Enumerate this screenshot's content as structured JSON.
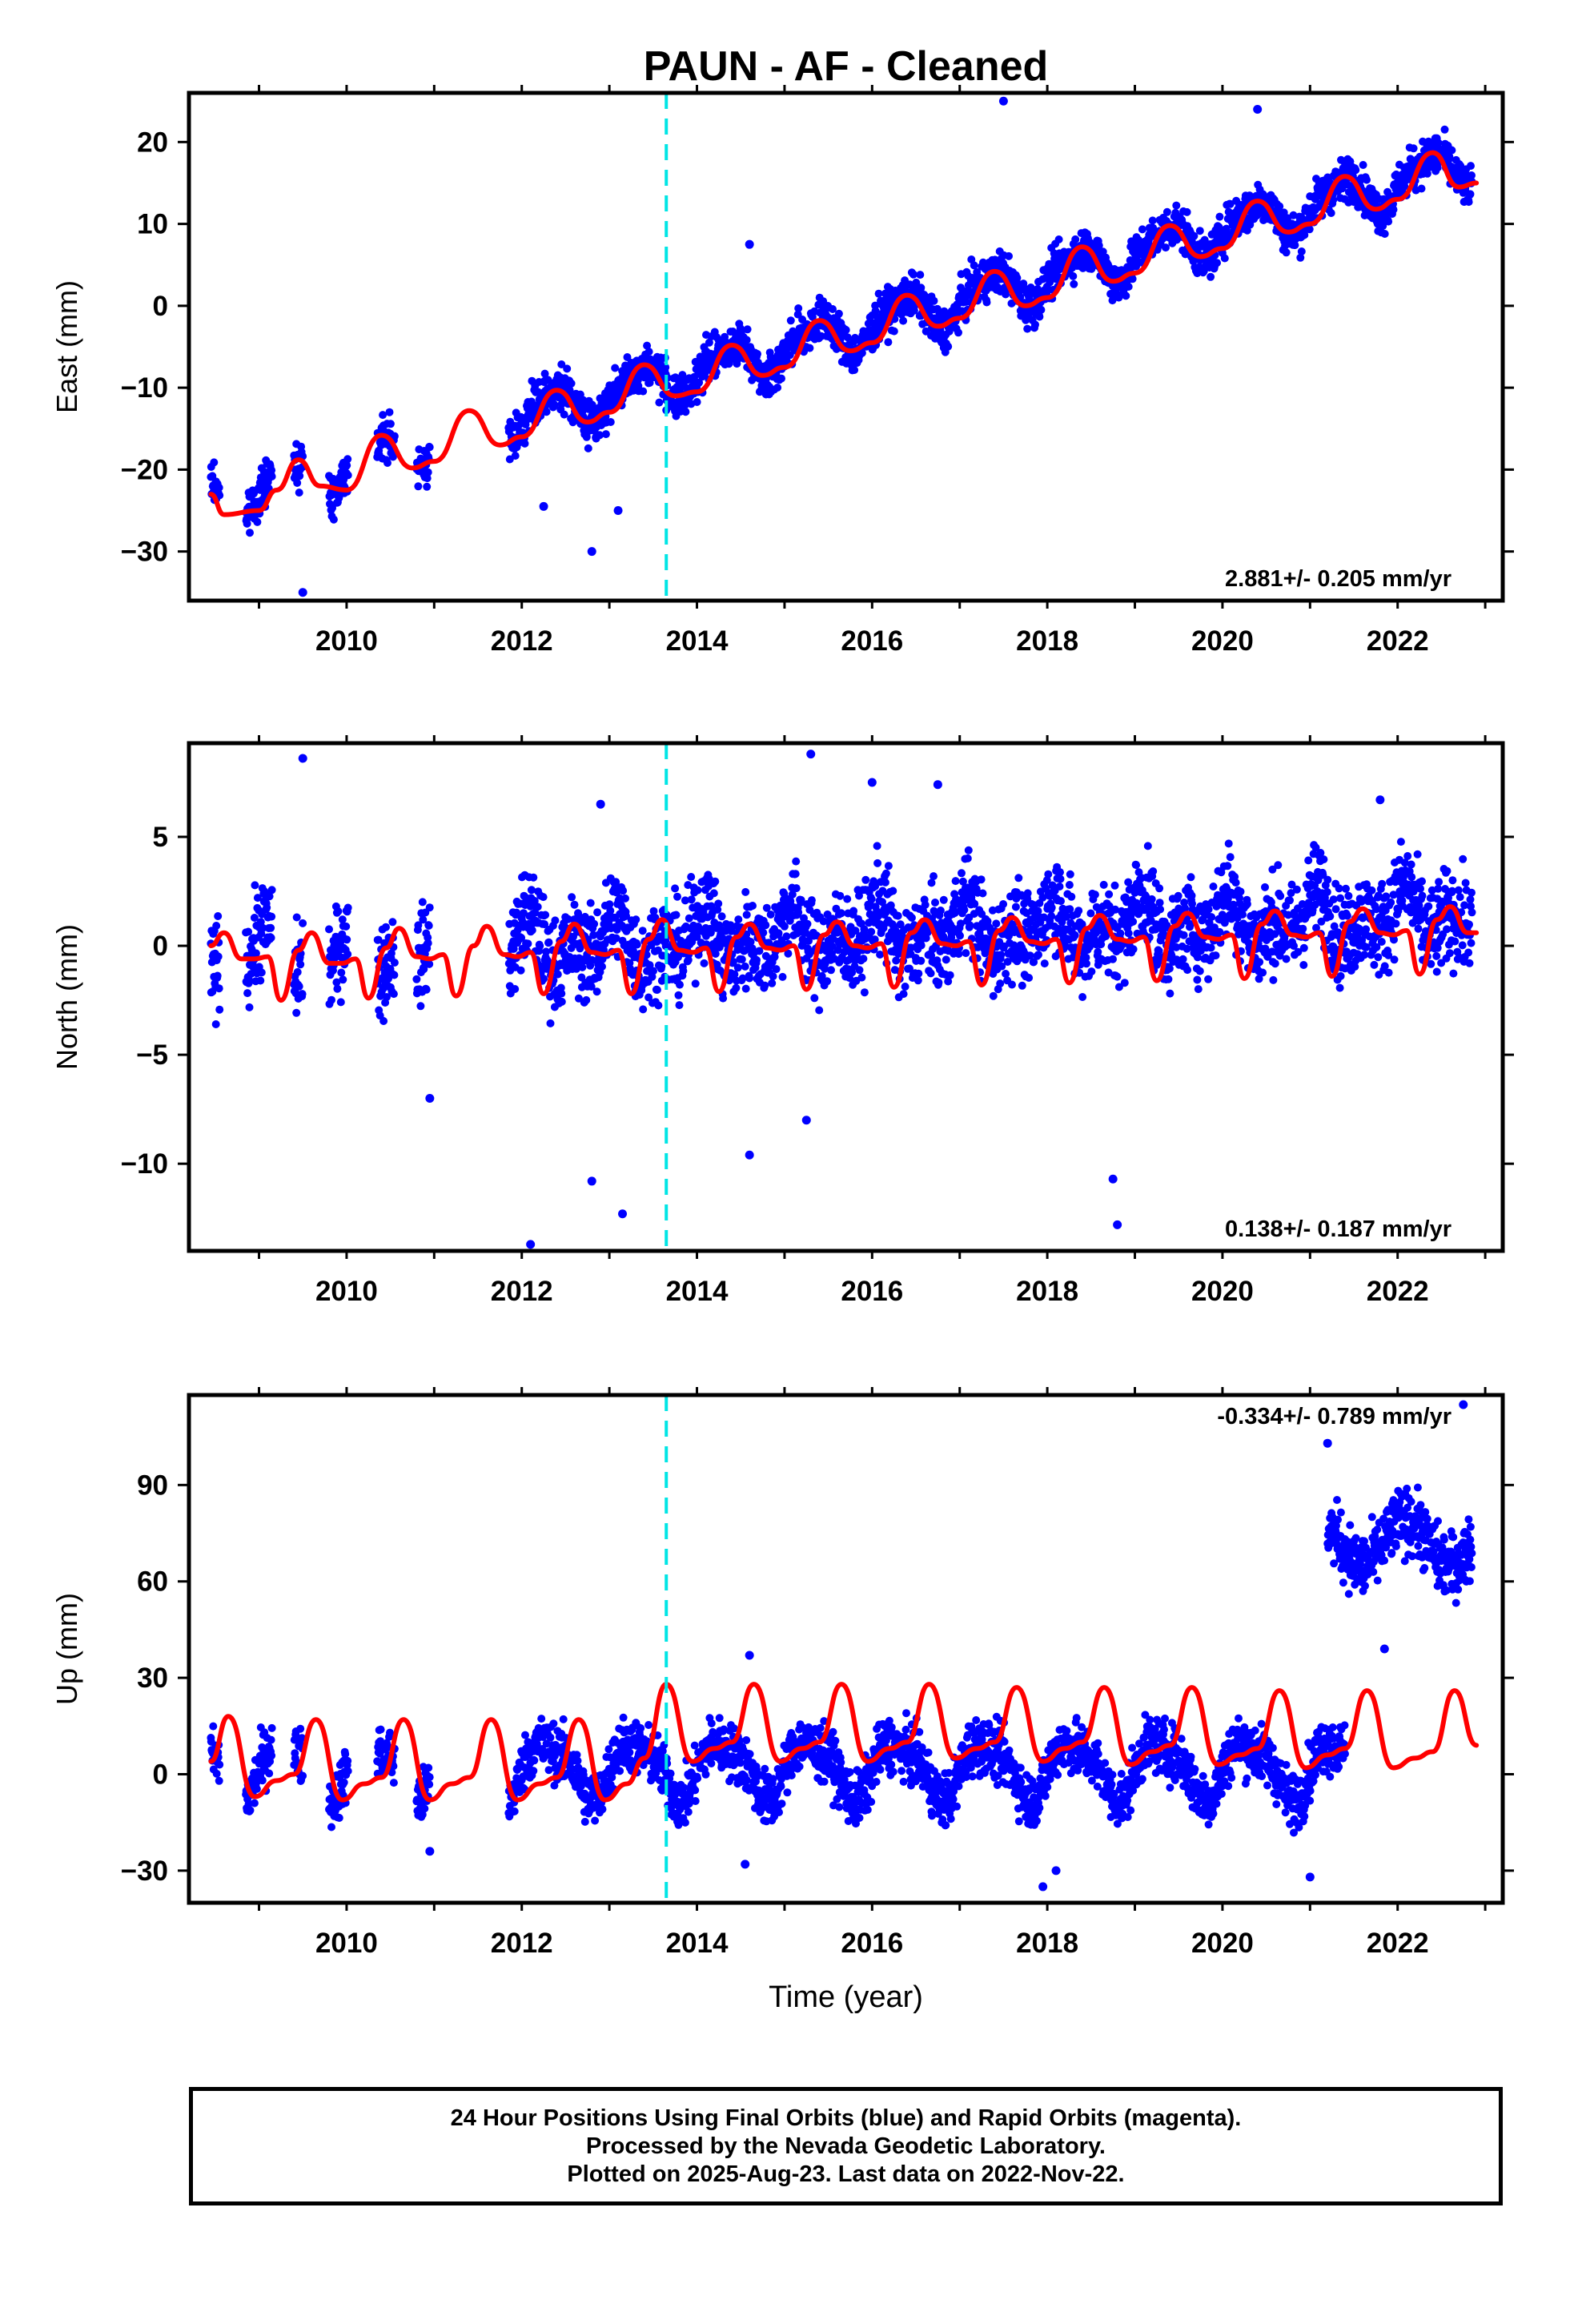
{
  "chart_data": [
    {
      "type": "scatter",
      "title": "PAUN  - AF - Cleaned",
      "ylabel": "East (mm)",
      "xlabel": "",
      "xlim": [
        2008.2,
        2023.2
      ],
      "ylim": [
        -36,
        26
      ],
      "xticks": [
        2010,
        2012,
        2014,
        2016,
        2018,
        2020,
        2022
      ],
      "yticks": [
        -30,
        -20,
        -10,
        0,
        10,
        20
      ],
      "rate_label": "2.881+/- 0.205 mm/yr",
      "rate_position": "bottom-right",
      "break_year": 2013.65,
      "grid": false,
      "series": [
        {
          "role": "final-orbit-positions",
          "color": "#0000ff",
          "segments": [
            [
              2008.45,
              2008.55
            ],
            [
              2008.85,
              2009.15
            ],
            [
              2009.4,
              2009.5
            ],
            [
              2009.8,
              2010.02
            ],
            [
              2010.35,
              2010.55
            ],
            [
              2010.8,
              2010.95
            ],
            [
              2011.85,
              2022.85
            ]
          ],
          "model": {
            "offset": -24.0,
            "trend": 2.881,
            "ann_c": -1.3,
            "ann_s": 2.0,
            "semi_c": 0.6,
            "semi_s": 0.3,
            "noise": 1.8
          }
        },
        {
          "role": "model-fit",
          "color": "#ff0000",
          "x": [
            2008.45,
            2008.6,
            2009.0,
            2009.2,
            2009.45,
            2009.7,
            2010.0,
            2010.4,
            2010.75,
            2011.0,
            2011.4,
            2011.75,
            2012.0,
            2012.4,
            2012.75,
            2013.0,
            2013.4,
            2013.75,
            2014.0,
            2014.4,
            2014.75,
            2015.0,
            2015.4,
            2015.75,
            2016.0,
            2016.4,
            2016.75,
            2017.0,
            2017.4,
            2017.75,
            2018.0,
            2018.4,
            2018.75,
            2019.0,
            2019.4,
            2019.75,
            2020.0,
            2020.4,
            2020.75,
            2021.0,
            2021.4,
            2021.75,
            2022.0,
            2022.4,
            2022.7,
            2022.9
          ],
          "y": [
            -23.0,
            -25.5,
            -25.0,
            -22.5,
            -18.8,
            -22.0,
            -22.5,
            -15.8,
            -19.8,
            -19.0,
            -12.8,
            -17.0,
            -16.0,
            -10.3,
            -14.2,
            -13.0,
            -7.2,
            -11.0,
            -10.5,
            -4.8,
            -8.5,
            -7.5,
            -1.8,
            -5.5,
            -4.5,
            1.3,
            -2.5,
            -1.5,
            4.2,
            0.0,
            1.0,
            7.2,
            3.0,
            4.0,
            9.8,
            6.0,
            7.0,
            12.8,
            9.0,
            10.0,
            15.8,
            11.8,
            13.0,
            18.7,
            14.5,
            15.0
          ]
        }
      ],
      "outliers": {
        "x": [
          2009.5,
          2012.8,
          2012.25,
          2017.5,
          2020.4,
          2013.1,
          2014.6
        ],
        "y": [
          -35.0,
          -30.0,
          -24.5,
          25.0,
          24.0,
          -25.0,
          7.5
        ]
      }
    },
    {
      "type": "scatter",
      "title": "",
      "ylabel": "North (mm)",
      "xlabel": "",
      "xlim": [
        2008.2,
        2023.2
      ],
      "ylim": [
        -14,
        9.3
      ],
      "xticks": [
        2010,
        2012,
        2014,
        2016,
        2018,
        2020,
        2022
      ],
      "yticks": [
        -10,
        -5,
        0,
        5
      ],
      "rate_label": "0.138+/- 0.187 mm/yr",
      "rate_position": "bottom-right",
      "break_year": 2013.65,
      "grid": false,
      "series": [
        {
          "role": "final-orbit-positions",
          "color": "#0000ff",
          "segments": [
            [
              2008.45,
              2008.55
            ],
            [
              2008.85,
              2009.15
            ],
            [
              2009.4,
              2009.5
            ],
            [
              2009.8,
              2010.02
            ],
            [
              2010.35,
              2010.55
            ],
            [
              2010.8,
              2010.95
            ],
            [
              2011.85,
              2022.85
            ]
          ],
          "model": {
            "offset": -0.5,
            "trend": 0.138,
            "ann_c": 0.7,
            "ann_s": 0.2,
            "semi_c": 0.3,
            "semi_s": 0.6,
            "noise": 1.5
          }
        },
        {
          "role": "model-fit",
          "color": "#ff0000",
          "x": [
            2008.45,
            2008.6,
            2008.8,
            2008.95,
            2009.1,
            2009.25,
            2009.45,
            2009.6,
            2009.8,
            2009.95,
            2010.1,
            2010.25,
            2010.45,
            2010.6,
            2010.8,
            2010.95,
            2011.1,
            2011.25,
            2011.45,
            2011.6,
            2011.8,
            2011.95,
            2012.1,
            2012.25,
            2012.45,
            2012.6,
            2012.8,
            2012.95,
            2013.1,
            2013.25,
            2013.45,
            2013.6,
            2013.8,
            2013.95,
            2014.1,
            2014.25,
            2014.45,
            2014.6,
            2014.8,
            2014.95,
            2015.1,
            2015.25,
            2015.45,
            2015.6,
            2015.8,
            2015.95,
            2016.1,
            2016.25,
            2016.45,
            2016.6,
            2016.8,
            2016.95,
            2017.1,
            2017.25,
            2017.45,
            2017.6,
            2017.8,
            2017.95,
            2018.1,
            2018.25,
            2018.45,
            2018.6,
            2018.8,
            2018.95,
            2019.1,
            2019.25,
            2019.45,
            2019.6,
            2019.8,
            2019.95,
            2020.1,
            2020.25,
            2020.45,
            2020.6,
            2020.8,
            2020.95,
            2021.1,
            2021.25,
            2021.45,
            2021.6,
            2021.8,
            2021.95,
            2022.1,
            2022.25,
            2022.45,
            2022.6,
            2022.8,
            2022.9
          ],
          "y": [
            0.0,
            0.6,
            -0.6,
            -0.6,
            -0.5,
            -2.5,
            -0.2,
            0.6,
            -0.8,
            -0.8,
            -0.6,
            -2.4,
            -0.1,
            0.8,
            -0.5,
            -0.6,
            -0.4,
            -2.3,
            0.0,
            0.9,
            -0.4,
            -0.5,
            -0.3,
            -2.2,
            0.2,
            1.0,
            -0.3,
            -0.4,
            -0.2,
            -2.2,
            0.3,
            1.2,
            -0.2,
            -0.3,
            -0.1,
            -2.1,
            0.4,
            1.0,
            -0.1,
            -0.2,
            0.0,
            -2.0,
            0.5,
            1.1,
            -0.0,
            -0.1,
            0.1,
            -1.9,
            0.6,
            1.2,
            0.1,
            0.0,
            0.2,
            -1.8,
            0.7,
            1.3,
            0.2,
            0.1,
            0.3,
            -1.7,
            0.8,
            1.4,
            0.3,
            0.2,
            0.4,
            -1.6,
            0.9,
            1.5,
            0.4,
            0.3,
            0.5,
            -1.5,
            1.0,
            1.6,
            0.5,
            0.4,
            0.6,
            -1.4,
            1.1,
            1.7,
            0.6,
            0.5,
            0.7,
            -1.3,
            1.2,
            1.8,
            0.6,
            0.6
          ]
        }
      ],
      "outliers": {
        "x": [
          2009.5,
          2012.1,
          2012.8,
          2012.9,
          2013.15,
          2015.3,
          2016.0,
          2016.75,
          2018.75,
          2018.8,
          2021.8,
          2014.6,
          2015.25,
          2010.95
        ],
        "y": [
          8.6,
          -13.7,
          -10.8,
          6.5,
          -12.3,
          8.8,
          7.5,
          7.4,
          -10.7,
          -12.8,
          6.7,
          -9.6,
          -8.0,
          -7.0
        ]
      }
    },
    {
      "type": "scatter",
      "title": "",
      "ylabel": "Up (mm)",
      "xlabel": "Time (year)",
      "xlim": [
        2008.2,
        2023.2
      ],
      "ylim": [
        -40,
        118
      ],
      "xticks": [
        2010,
        2012,
        2014,
        2016,
        2018,
        2020,
        2022
      ],
      "yticks": [
        -30,
        0,
        30,
        60,
        90
      ],
      "rate_label": "-0.334+/- 0.789 mm/yr",
      "rate_position": "top-right",
      "break_year": 2013.65,
      "grid": false,
      "series": [
        {
          "role": "final-orbit-positions",
          "color": "#0000ff",
          "segments": [
            [
              2008.45,
              2008.55
            ],
            [
              2008.85,
              2009.15
            ],
            [
              2009.4,
              2009.5
            ],
            [
              2009.8,
              2010.02
            ],
            [
              2010.35,
              2010.55
            ],
            [
              2010.8,
              2010.95
            ],
            [
              2011.85,
              2021.4
            ]
          ],
          "model": {
            "offset": 2.0,
            "trend": 0.0,
            "ann_c": -2.0,
            "ann_s": 8.0,
            "semi_c": 1.0,
            "semi_s": 2.0,
            "noise": 6.0
          }
        },
        {
          "role": "final-orbit-positions-offset",
          "color": "#0000ff",
          "segments": [
            [
              2021.2,
              2022.85
            ]
          ],
          "model": {
            "offset": 72.0,
            "trend": 0.0,
            "ann_c": 6.0,
            "ann_s": 4.0,
            "semi_c": 0.0,
            "semi_s": 0.0,
            "noise": 7.0
          }
        },
        {
          "role": "model-fit",
          "color": "#ff0000",
          "x": [
            2008.45,
            2008.65,
            2008.95,
            2009.2,
            2009.4,
            2009.65,
            2009.95,
            2010.2,
            2010.4,
            2010.65,
            2010.95,
            2011.2,
            2011.4,
            2011.65,
            2011.95,
            2012.2,
            2012.4,
            2012.65,
            2012.95,
            2013.2,
            2013.4,
            2013.65,
            2013.95,
            2014.2,
            2014.4,
            2014.65,
            2014.95,
            2015.2,
            2015.4,
            2015.65,
            2015.95,
            2016.2,
            2016.4,
            2016.65,
            2016.95,
            2017.2,
            2017.4,
            2017.65,
            2017.95,
            2018.2,
            2018.4,
            2018.65,
            2018.95,
            2019.2,
            2019.4,
            2019.65,
            2019.95,
            2020.2,
            2020.4,
            2020.65,
            2020.95,
            2021.2,
            2021.4,
            2021.65,
            2021.95,
            2022.2,
            2022.4,
            2022.65,
            2022.9
          ],
          "y": [
            4,
            18,
            -7,
            -2,
            0,
            17,
            -8,
            -3,
            -1,
            17,
            -8,
            -3,
            -1,
            17,
            -8,
            -3,
            -1,
            17,
            -8,
            -3,
            5,
            28,
            4,
            8,
            10,
            28,
            4,
            8,
            10,
            28,
            4,
            8,
            10,
            28,
            5,
            8,
            10,
            27,
            4,
            8,
            10,
            27,
            3,
            7,
            9,
            27,
            3,
            6,
            8,
            26,
            2,
            6,
            8,
            26,
            2,
            5,
            7,
            26,
            9
          ]
        }
      ],
      "outliers": {
        "x": [
          2014.6,
          2021.2,
          2021.85,
          2022.75,
          2010.95,
          2014.55,
          2017.95,
          2018.1,
          2021.0
        ],
        "y": [
          37,
          103,
          39,
          115,
          -24,
          -28,
          -35,
          -30,
          -32
        ]
      }
    }
  ],
  "footer": {
    "line1": "24 Hour Positions Using Final Orbits (blue) and Rapid Orbits (magenta).",
    "line2": "Processed by the Nevada Geodetic Laboratory.",
    "line3": "Plotted on 2025-Aug-23. Last data on 2022-Nov-22."
  }
}
